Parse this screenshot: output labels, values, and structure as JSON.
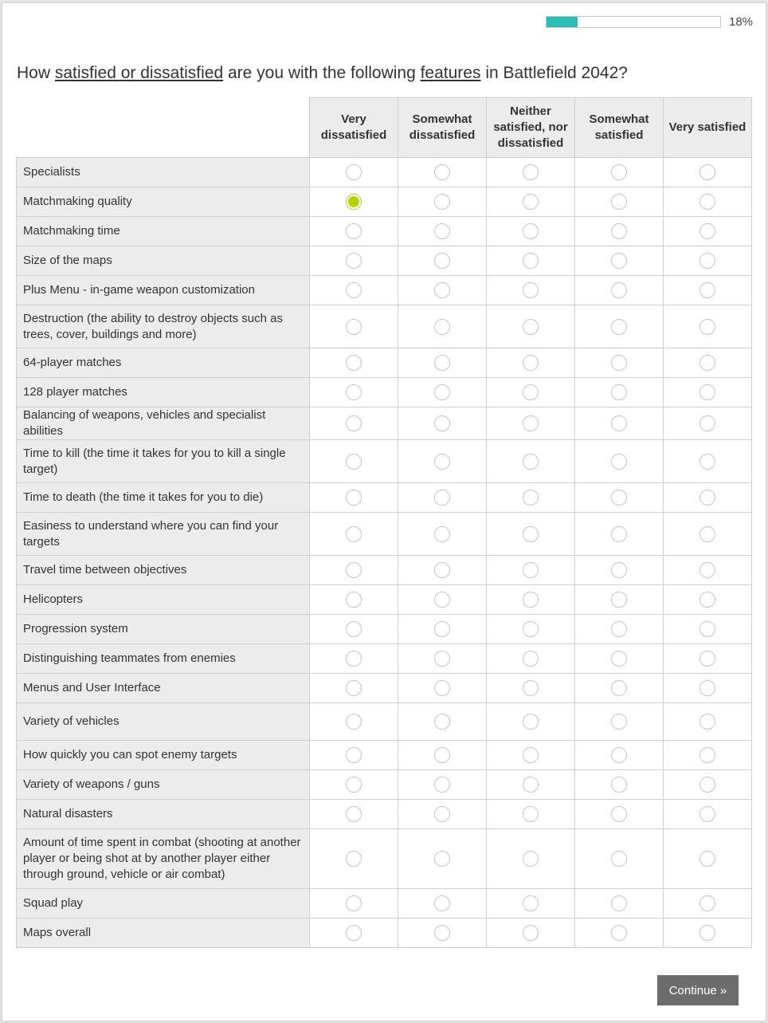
{
  "progress": {
    "percent": 18,
    "label": "18%",
    "color": "#2ebdb6"
  },
  "question": {
    "prefix": "How ",
    "term1": "satisfied or dissatisfied",
    "middle": " are you with the following ",
    "term2": "features",
    "suffix": " in Battlefield 2042?"
  },
  "columns": [
    "Very dissatisfied",
    "Somewhat dissatisfied",
    "Neither satisfied, nor dissatisfied",
    "Somewhat satisfied",
    "Very satisfied"
  ],
  "rows": [
    {
      "label": "Specialists",
      "selected": null
    },
    {
      "label": "Matchmaking quality",
      "selected": 0
    },
    {
      "label": "Matchmaking time",
      "selected": null
    },
    {
      "label": "Size of the maps",
      "selected": null
    },
    {
      "label": "Plus Menu - in-game weapon customization",
      "selected": null
    },
    {
      "label": "Destruction (the ability to destroy objects such as trees, cover, buildings and more)",
      "selected": null,
      "lines": 2
    },
    {
      "label": "64-player matches",
      "selected": null
    },
    {
      "label": "128 player matches",
      "selected": null
    },
    {
      "label": "Balancing of weapons, vehicles and specialist abilities",
      "selected": null
    },
    {
      "label": "Time to kill (the time it takes for you to kill a single target)",
      "selected": null,
      "lines": 2
    },
    {
      "label": "Time to death (the time it takes for you to die)",
      "selected": null
    },
    {
      "label": "Easiness to understand where you can find your targets",
      "selected": null,
      "lines": 2
    },
    {
      "label": "Travel time between objectives",
      "selected": null
    },
    {
      "label": "Helicopters",
      "selected": null
    },
    {
      "label": "Progression system",
      "selected": null
    },
    {
      "label": "Distinguishing teammates from enemies",
      "selected": null
    },
    {
      "label": "Menus and User Interface",
      "selected": null
    },
    {
      "label": "Variety of vehicles",
      "selected": null,
      "seam": true
    },
    {
      "label": "How quickly you can spot enemy targets",
      "selected": null
    },
    {
      "label": "Variety of weapons / guns",
      "selected": null
    },
    {
      "label": "Natural disasters",
      "selected": null
    },
    {
      "label": "Amount of time spent in combat (shooting at another player or being shot at by another player either through ground, vehicle or air combat)",
      "selected": null,
      "lines": 3
    },
    {
      "label": "Squad play",
      "selected": null
    },
    {
      "label": "Maps overall",
      "selected": null
    }
  ],
  "selected_color": "#b7d100",
  "continue_label": "Continue »"
}
